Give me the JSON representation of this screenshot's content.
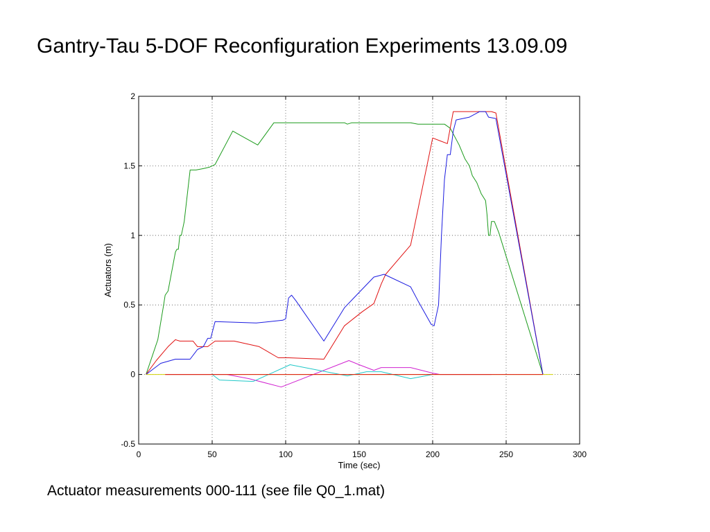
{
  "slide": {
    "title": "Gantry-Tau 5-DOF Reconfiguration Experiments 13.09.09",
    "caption": "Actuator measurements 000-111 (see file Q0_1.mat)"
  },
  "chart_data": {
    "type": "line",
    "title": "",
    "xlabel": "Time (sec)",
    "ylabel": "Actuators (m)",
    "xlim": [
      0,
      300
    ],
    "ylim": [
      -0.5,
      2
    ],
    "xticks": [
      0,
      50,
      100,
      150,
      200,
      250,
      300
    ],
    "yticks": [
      -0.5,
      0,
      0.5,
      1,
      1.5,
      2
    ],
    "xtick_labels": [
      "0",
      "50",
      "100",
      "150",
      "200",
      "250",
      "300"
    ],
    "ytick_labels": [
      "-0.5",
      "0",
      "0.5",
      "1",
      "1.5",
      "2"
    ],
    "grid": true,
    "legend": "none",
    "series": [
      {
        "color": "#1a9a1a",
        "points": [
          [
            5,
            0
          ],
          [
            13,
            0.25
          ],
          [
            17,
            0.5
          ],
          [
            18,
            0.57
          ],
          [
            20,
            0.6
          ],
          [
            25,
            0.88
          ],
          [
            26,
            0.9
          ],
          [
            27,
            0.9
          ],
          [
            28,
            1.0
          ],
          [
            29,
            1.0
          ],
          [
            31,
            1.1
          ],
          [
            35,
            1.47
          ],
          [
            39,
            1.47
          ],
          [
            44,
            1.48
          ],
          [
            48,
            1.49
          ],
          [
            52,
            1.51
          ],
          [
            64,
            1.75
          ],
          [
            69,
            1.72
          ],
          [
            81,
            1.65
          ],
          [
            92,
            1.81
          ],
          [
            140,
            1.81
          ],
          [
            142,
            1.8
          ],
          [
            145,
            1.81
          ],
          [
            185,
            1.81
          ],
          [
            190,
            1.8
          ],
          [
            203,
            1.8
          ],
          [
            208,
            1.8
          ],
          [
            212,
            1.77
          ],
          [
            218,
            1.65
          ],
          [
            222,
            1.55
          ],
          [
            225,
            1.5
          ],
          [
            227,
            1.43
          ],
          [
            230,
            1.38
          ],
          [
            233,
            1.3
          ],
          [
            236,
            1.25
          ],
          [
            237,
            1.15
          ],
          [
            238,
            1.0
          ],
          [
            239,
            1.0
          ],
          [
            240,
            1.1
          ],
          [
            242,
            1.1
          ],
          [
            245,
            1.02
          ],
          [
            275,
            0.0
          ]
        ]
      },
      {
        "color": "#e01010",
        "points": [
          [
            5,
            0
          ],
          [
            12,
            0.1
          ],
          [
            20,
            0.2
          ],
          [
            25,
            0.25
          ],
          [
            28,
            0.24
          ],
          [
            33,
            0.24
          ],
          [
            37,
            0.24
          ],
          [
            40,
            0.2
          ],
          [
            44,
            0.2
          ],
          [
            47,
            0.2
          ],
          [
            52,
            0.24
          ],
          [
            65,
            0.24
          ],
          [
            82,
            0.2
          ],
          [
            95,
            0.12
          ],
          [
            102,
            0.12
          ],
          [
            126,
            0.11
          ],
          [
            140,
            0.35
          ],
          [
            152,
            0.45
          ],
          [
            160,
            0.51
          ],
          [
            165,
            0.65
          ],
          [
            168,
            0.72
          ],
          [
            185,
            0.93
          ],
          [
            200,
            1.7
          ],
          [
            210,
            1.66
          ],
          [
            214,
            1.89
          ],
          [
            240,
            1.89
          ],
          [
            243,
            1.88
          ],
          [
            275,
            0.0
          ]
        ]
      },
      {
        "color": "#1a1ae0",
        "points": [
          [
            5,
            0
          ],
          [
            15,
            0.08
          ],
          [
            25,
            0.11
          ],
          [
            35,
            0.11
          ],
          [
            40,
            0.18
          ],
          [
            44,
            0.2
          ],
          [
            47,
            0.26
          ],
          [
            49,
            0.26
          ],
          [
            52,
            0.38
          ],
          [
            80,
            0.37
          ],
          [
            98,
            0.39
          ],
          [
            100,
            0.4
          ],
          [
            102,
            0.55
          ],
          [
            104,
            0.57
          ],
          [
            107,
            0.53
          ],
          [
            126,
            0.24
          ],
          [
            140,
            0.48
          ],
          [
            160,
            0.7
          ],
          [
            167,
            0.72
          ],
          [
            185,
            0.63
          ],
          [
            190,
            0.53
          ],
          [
            199,
            0.36
          ],
          [
            201,
            0.35
          ],
          [
            204,
            0.5
          ],
          [
            206,
            1.0
          ],
          [
            208,
            1.4
          ],
          [
            210,
            1.58
          ],
          [
            212,
            1.58
          ],
          [
            214,
            1.75
          ],
          [
            216,
            1.83
          ],
          [
            225,
            1.85
          ],
          [
            232,
            1.89
          ],
          [
            236,
            1.89
          ],
          [
            238,
            1.85
          ],
          [
            243,
            1.84
          ],
          [
            275,
            0.0
          ]
        ]
      },
      {
        "color": "#d020d0",
        "points": [
          [
            18,
            0
          ],
          [
            60,
            0
          ],
          [
            75,
            -0.03
          ],
          [
            97,
            -0.09
          ],
          [
            143,
            0.1
          ],
          [
            150,
            0.07
          ],
          [
            160,
            0.03
          ],
          [
            165,
            0.05
          ],
          [
            185,
            0.05
          ],
          [
            200,
            0.01
          ],
          [
            205,
            0.0
          ],
          [
            240,
            0.0
          ]
        ]
      },
      {
        "color": "#20c8c8",
        "points": [
          [
            50,
            0
          ],
          [
            55,
            -0.04
          ],
          [
            78,
            -0.05
          ],
          [
            103,
            0.07
          ],
          [
            142,
            -0.01
          ],
          [
            155,
            0.02
          ],
          [
            165,
            0.02
          ],
          [
            185,
            -0.03
          ],
          [
            200,
            0.0
          ]
        ]
      },
      {
        "color": "#d0d000",
        "points": [
          [
            5,
            0
          ],
          [
            282,
            0
          ]
        ]
      },
      {
        "color": "#e01010",
        "points": [
          [
            18,
            0
          ],
          [
            275,
            0
          ]
        ]
      }
    ]
  }
}
